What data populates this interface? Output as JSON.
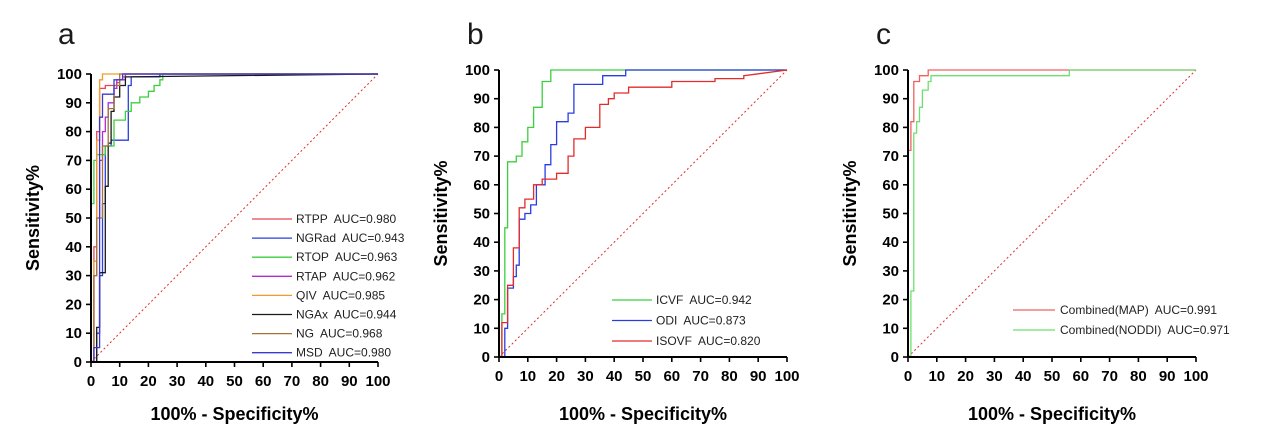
{
  "chart_data": [
    {
      "type": "line",
      "panel": "a",
      "xlabel": "100% - Specificity%",
      "ylabel": "Sensitivity%",
      "xlim": [
        0,
        100
      ],
      "ylim": [
        0,
        100
      ],
      "xticks": [
        "0",
        "10",
        "20",
        "30",
        "40",
        "50",
        "60",
        "70",
        "80",
        "90",
        "100"
      ],
      "yticks": [
        "0",
        "10",
        "20",
        "30",
        "40",
        "50",
        "60",
        "70",
        "80",
        "90",
        "100"
      ],
      "reference_line": {
        "x": [
          0,
          100
        ],
        "y": [
          0,
          100
        ],
        "color": "#e32b2b",
        "style": "dotted"
      },
      "legend_position": "bottom-right",
      "series": [
        {
          "name": "RTPP",
          "auc": "AUC=0.980",
          "color": "#e8484f",
          "x": [
            0,
            1,
            1,
            2,
            2,
            3,
            3,
            5,
            5,
            9,
            9,
            10,
            10,
            11,
            11,
            12,
            12,
            100
          ],
          "y": [
            0,
            0,
            40,
            40,
            80,
            80,
            95,
            95,
            96,
            96,
            97,
            97,
            98,
            98,
            99,
            99,
            100,
            100
          ]
        },
        {
          "name": "NGRad",
          "auc": "AUC=0.943",
          "color": "#2b3de0",
          "x": [
            0,
            2,
            2,
            3,
            3,
            4,
            4,
            5,
            5,
            7,
            7,
            13,
            13,
            14,
            14,
            24,
            24,
            100
          ],
          "y": [
            0,
            0,
            10,
            10,
            30,
            30,
            55,
            55,
            75,
            75,
            77,
            77,
            96,
            96,
            99,
            99,
            100,
            100
          ]
        },
        {
          "name": "RTOP",
          "auc": "AUC=0.963",
          "color": "#3ccf3c",
          "x": [
            0,
            0,
            1,
            1,
            2,
            2,
            5,
            5,
            8,
            8,
            12,
            12,
            14,
            14,
            17,
            17,
            20,
            20,
            22,
            22,
            24,
            24,
            25,
            25,
            100
          ],
          "y": [
            0,
            55,
            55,
            70,
            70,
            72,
            72,
            75,
            75,
            84,
            84,
            87,
            87,
            90,
            90,
            92,
            92,
            94,
            94,
            96,
            96,
            98,
            98,
            100,
            100
          ]
        },
        {
          "name": "RTAP",
          "auc": "AUC=0.962",
          "color": "#b22bd6",
          "x": [
            0,
            1,
            1,
            2,
            2,
            3,
            3,
            4,
            4,
            5,
            5,
            6,
            6,
            8,
            8,
            9,
            9,
            12,
            12,
            100
          ],
          "y": [
            0,
            0,
            30,
            30,
            50,
            50,
            70,
            70,
            80,
            80,
            85,
            85,
            90,
            90,
            95,
            95,
            98,
            98,
            100,
            100
          ]
        },
        {
          "name": "QIV",
          "auc": "AUC=0.985",
          "color": "#f29a2e",
          "x": [
            0,
            1,
            1,
            2,
            2,
            3,
            3,
            4,
            4,
            100
          ],
          "y": [
            0,
            0,
            35,
            35,
            77,
            77,
            98,
            98,
            100,
            100
          ]
        },
        {
          "name": "NGAx",
          "auc": "AUC=0.944",
          "color": "#1a1a1a",
          "x": [
            0,
            2,
            2,
            3,
            3,
            5,
            5,
            6,
            6,
            7,
            7,
            8,
            8,
            10,
            10,
            12,
            12,
            100
          ],
          "y": [
            0,
            0,
            12,
            12,
            31,
            31,
            61,
            61,
            76,
            76,
            87,
            87,
            92,
            92,
            96,
            96,
            99,
            100
          ]
        },
        {
          "name": "NG",
          "auc": "AUC=0.968",
          "color": "#a3743a",
          "x": [
            0,
            1,
            1,
            2,
            2,
            4,
            4,
            6,
            6,
            8,
            8,
            10,
            10,
            100
          ],
          "y": [
            0,
            0,
            30,
            30,
            50,
            50,
            75,
            75,
            88,
            88,
            96,
            96,
            100,
            100
          ]
        },
        {
          "name": "MSD",
          "auc": "AUC=0.980",
          "color": "#3a3ad0",
          "x": [
            0,
            1,
            1,
            3,
            3,
            4,
            4,
            8,
            8,
            11,
            11,
            100
          ],
          "y": [
            0,
            0,
            5,
            5,
            85,
            85,
            93,
            93,
            98,
            98,
            100,
            100
          ]
        }
      ]
    },
    {
      "type": "line",
      "panel": "b",
      "xlabel": "100% - Specificity%",
      "ylabel": "Sensitivity%",
      "xlim": [
        0,
        100
      ],
      "ylim": [
        0,
        100
      ],
      "xticks": [
        "0",
        "10",
        "20",
        "30",
        "40",
        "50",
        "60",
        "70",
        "80",
        "90",
        "100"
      ],
      "yticks": [
        "0",
        "10",
        "20",
        "30",
        "40",
        "50",
        "60",
        "70",
        "80",
        "90",
        "100"
      ],
      "reference_line": {
        "x": [
          0,
          100
        ],
        "y": [
          0,
          100
        ],
        "color": "#e32b2b",
        "style": "dotted"
      },
      "legend_position": "bottom-right",
      "series": [
        {
          "name": "ICVF",
          "auc": "AUC=0.942",
          "color": "#3ccf3c",
          "x": [
            0,
            1,
            1,
            2,
            2,
            3,
            3,
            6,
            6,
            8,
            8,
            10,
            10,
            12,
            12,
            15,
            15,
            18,
            18,
            100
          ],
          "y": [
            0,
            0,
            15,
            15,
            45,
            45,
            68,
            68,
            70,
            70,
            75,
            75,
            80,
            80,
            87,
            87,
            96,
            96,
            100,
            100
          ]
        },
        {
          "name": "ODI",
          "auc": "AUC=0.873",
          "color": "#2b3de0",
          "x": [
            0,
            2,
            2,
            3,
            3,
            5,
            5,
            6,
            6,
            7,
            7,
            9,
            9,
            11,
            11,
            13,
            13,
            16,
            16,
            18,
            18,
            20,
            20,
            24,
            24,
            26,
            26,
            36,
            36,
            44,
            44,
            100
          ],
          "y": [
            0,
            0,
            10,
            10,
            24,
            24,
            28,
            28,
            32,
            32,
            48,
            48,
            50,
            50,
            53,
            53,
            60,
            60,
            67,
            67,
            74,
            74,
            82,
            82,
            85,
            85,
            95,
            95,
            98,
            98,
            100,
            100
          ]
        },
        {
          "name": "ISOVF",
          "auc": "AUC=0.820",
          "color": "#e32b2b",
          "x": [
            0,
            1,
            1,
            3,
            3,
            5,
            5,
            7,
            7,
            9,
            9,
            12,
            12,
            15,
            15,
            20,
            20,
            24,
            24,
            26,
            26,
            30,
            30,
            35,
            35,
            38,
            38,
            40,
            40,
            45,
            45,
            60,
            60,
            75,
            75,
            85,
            85,
            100
          ],
          "y": [
            0,
            0,
            12,
            12,
            25,
            25,
            38,
            38,
            52,
            52,
            55,
            55,
            60,
            60,
            62,
            62,
            64,
            64,
            70,
            70,
            76,
            76,
            80,
            80,
            88,
            88,
            90,
            90,
            92,
            92,
            94,
            94,
            96,
            96,
            97,
            97,
            98,
            100
          ]
        }
      ]
    },
    {
      "type": "line",
      "panel": "c",
      "xlabel": "100% - Specificity%",
      "ylabel": "Sensitivity%",
      "xlim": [
        0,
        100
      ],
      "ylim": [
        0,
        100
      ],
      "xticks": [
        "0",
        "10",
        "20",
        "30",
        "40",
        "50",
        "60",
        "70",
        "80",
        "90",
        "100"
      ],
      "yticks": [
        "0",
        "10",
        "20",
        "30",
        "40",
        "50",
        "60",
        "70",
        "80",
        "90",
        "100"
      ],
      "reference_line": {
        "x": [
          0,
          100
        ],
        "y": [
          0,
          100
        ],
        "color": "#e32b2b",
        "style": "dotted"
      },
      "legend_position": "bottom-right",
      "series": [
        {
          "name": "Combined(MAP)",
          "auc": "AUC=0.991",
          "color": "#f06060",
          "x": [
            0,
            0,
            1,
            1,
            2,
            2,
            4,
            4,
            7,
            7,
            100
          ],
          "y": [
            0,
            72,
            72,
            82,
            82,
            96,
            96,
            98,
            98,
            100,
            100
          ]
        },
        {
          "name": "Combined(NODDI)",
          "auc": "AUC=0.971",
          "color": "#6ee06e",
          "x": [
            0,
            1,
            1,
            2,
            2,
            3,
            3,
            4,
            4,
            5,
            5,
            7,
            7,
            8,
            8,
            56,
            56,
            100
          ],
          "y": [
            0,
            0,
            23,
            23,
            78,
            78,
            82,
            82,
            87,
            87,
            93,
            93,
            96,
            96,
            98,
            98,
            100,
            100
          ]
        }
      ]
    }
  ]
}
